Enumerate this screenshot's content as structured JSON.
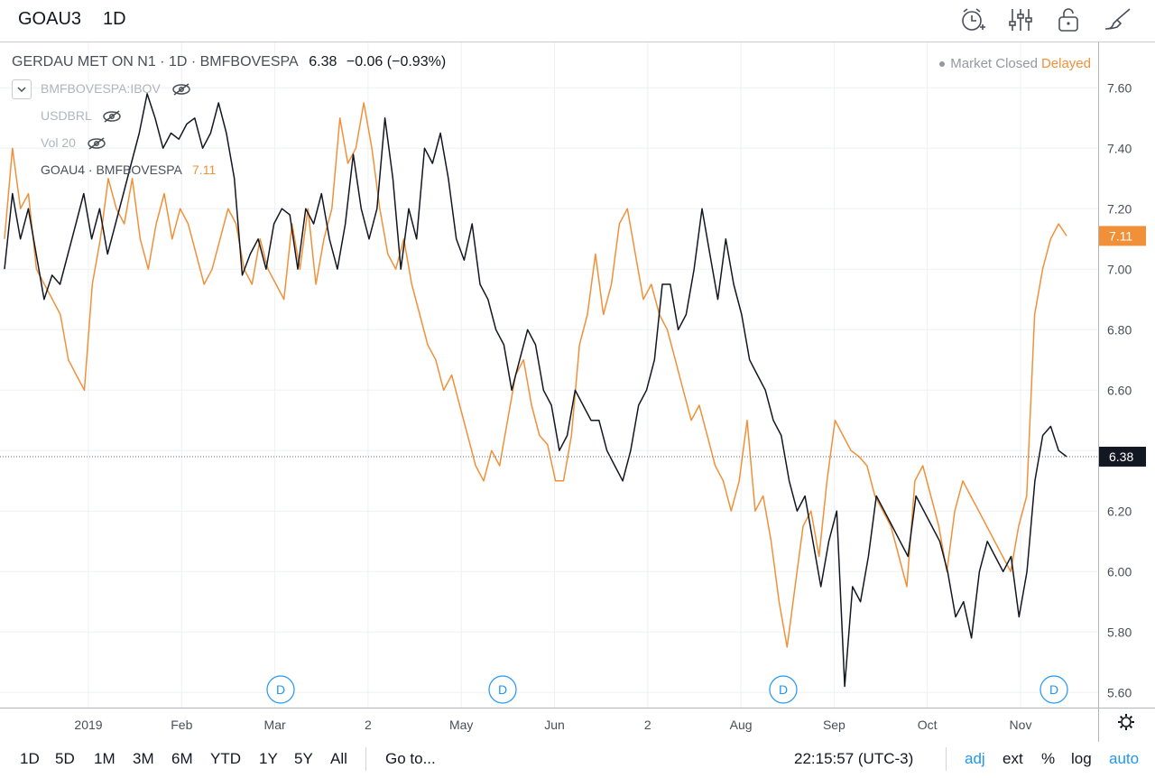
{
  "header": {
    "symbol": "GOAU3",
    "timeframe": "1D"
  },
  "toolbar_icons": [
    "alarm-add-icon",
    "indicators-icon",
    "lock-icon",
    "drawing-brush-icon"
  ],
  "legend": {
    "title": "GERDAU MET ON N1 · 1D · BMFBOVESPA",
    "last": "6.38",
    "change": "−0.06 (−0.93%)",
    "market_status": "Market Closed",
    "delay": "Delayed"
  },
  "studies": [
    {
      "label": "BMFBOVESPA:IBOV",
      "value": ""
    },
    {
      "label": "USDBRL",
      "value": ""
    },
    {
      "label": "Vol 20",
      "value": ""
    },
    {
      "label": "GOAU4 · BMFBOVESPA",
      "value": "7.11"
    }
  ],
  "colors": {
    "main": "#131722",
    "compare": "#f0913a",
    "grid": "#eef0f3",
    "axis": "#b2b5be",
    "dividend": "#2196f3"
  },
  "chart_data": {
    "type": "line",
    "x_ticks": [
      "2019",
      "Feb",
      "Mar",
      "2",
      "May",
      "Jun",
      "2",
      "Aug",
      "Sep",
      "Oct",
      "Nov"
    ],
    "y_ticks": [
      "7.60",
      "7.40",
      "7.20",
      "7.00",
      "6.80",
      "6.60",
      "6.40",
      "6.20",
      "6.00",
      "5.80",
      "5.60"
    ],
    "ylim": [
      5.55,
      7.75
    ],
    "last_price_label": "6.38",
    "compare_price_label": "7.11",
    "dividend_markers": [
      "D",
      "D",
      "D",
      "D"
    ],
    "series": [
      {
        "name": "GOAU3",
        "color": "#131722",
        "values": [
          7.0,
          7.25,
          7.1,
          7.2,
          7.05,
          6.9,
          6.98,
          6.95,
          7.05,
          7.15,
          7.25,
          7.1,
          7.2,
          7.05,
          7.15,
          7.25,
          7.35,
          7.45,
          7.58,
          7.5,
          7.4,
          7.45,
          7.43,
          7.48,
          7.5,
          7.4,
          7.45,
          7.55,
          7.45,
          7.3,
          6.98,
          7.05,
          7.1,
          7.0,
          7.15,
          7.2,
          7.18,
          7.0,
          7.2,
          7.15,
          7.25,
          7.1,
          7.0,
          7.15,
          7.38,
          7.2,
          7.1,
          7.2,
          7.5,
          7.3,
          7.0,
          7.2,
          7.1,
          7.4,
          7.35,
          7.45,
          7.3,
          7.1,
          7.03,
          7.15,
          6.95,
          6.9,
          6.8,
          6.75,
          6.6,
          6.7,
          6.8,
          6.75,
          6.6,
          6.55,
          6.4,
          6.45,
          6.6,
          6.55,
          6.5,
          6.5,
          6.4,
          6.35,
          6.3,
          6.4,
          6.55,
          6.6,
          6.7,
          6.95,
          6.95,
          6.8,
          6.85,
          7.0,
          7.2,
          7.05,
          6.9,
          7.1,
          6.95,
          6.85,
          6.7,
          6.65,
          6.6,
          6.5,
          6.45,
          6.3,
          6.2,
          6.25,
          6.1,
          5.95,
          6.1,
          6.2,
          5.62,
          5.95,
          5.9,
          6.05,
          6.25,
          6.2,
          6.15,
          6.1,
          6.05,
          6.25,
          6.2,
          6.15,
          6.1,
          6.0,
          5.85,
          5.9,
          5.78,
          6.0,
          6.1,
          6.05,
          6.0,
          6.05,
          5.85,
          6.0,
          6.3,
          6.45,
          6.48,
          6.4,
          6.38
        ]
      },
      {
        "name": "GOAU4 · BMFBOVESPA",
        "color": "#f0913a",
        "values": [
          7.1,
          7.4,
          7.2,
          7.25,
          7.0,
          6.95,
          6.9,
          6.85,
          6.7,
          6.65,
          6.6,
          6.95,
          7.1,
          7.3,
          7.2,
          7.15,
          7.3,
          7.1,
          7.0,
          7.15,
          7.25,
          7.1,
          7.2,
          7.15,
          7.05,
          6.95,
          7.0,
          7.1,
          7.2,
          7.15,
          7.0,
          6.95,
          7.1,
          7.0,
          6.95,
          6.9,
          7.15,
          7.0,
          7.2,
          6.95,
          7.1,
          7.2,
          7.5,
          7.35,
          7.4,
          7.55,
          7.4,
          7.2,
          7.05,
          7.0,
          7.1,
          6.95,
          6.85,
          6.75,
          6.7,
          6.6,
          6.65,
          6.55,
          6.45,
          6.35,
          6.3,
          6.4,
          6.35,
          6.5,
          6.65,
          6.7,
          6.55,
          6.45,
          6.42,
          6.3,
          6.3,
          6.45,
          6.75,
          6.85,
          7.05,
          6.85,
          6.95,
          7.15,
          7.2,
          7.05,
          6.9,
          6.95,
          6.85,
          6.8,
          6.7,
          6.6,
          6.5,
          6.55,
          6.45,
          6.35,
          6.3,
          6.2,
          6.3,
          6.5,
          6.2,
          6.25,
          6.1,
          5.9,
          5.75,
          5.95,
          6.15,
          6.2,
          6.05,
          6.3,
          6.5,
          6.45,
          6.4,
          6.38,
          6.35,
          6.25,
          6.2,
          6.15,
          6.05,
          5.95,
          6.3,
          6.35,
          6.25,
          6.15,
          6.0,
          6.2,
          6.3,
          6.25,
          6.2,
          6.15,
          6.1,
          6.05,
          6.0,
          6.15,
          6.25,
          6.85,
          7.0,
          7.1,
          7.15,
          7.11
        ]
      }
    ]
  },
  "bottombar": {
    "ranges": [
      "1D",
      "5D",
      "1M",
      "3M",
      "6M",
      "YTD",
      "1Y",
      "5Y",
      "All"
    ],
    "goto": "Go to...",
    "clock": "22:15:57 (UTC-3)",
    "options": [
      "adj",
      "ext",
      "%",
      "log",
      "auto"
    ]
  }
}
